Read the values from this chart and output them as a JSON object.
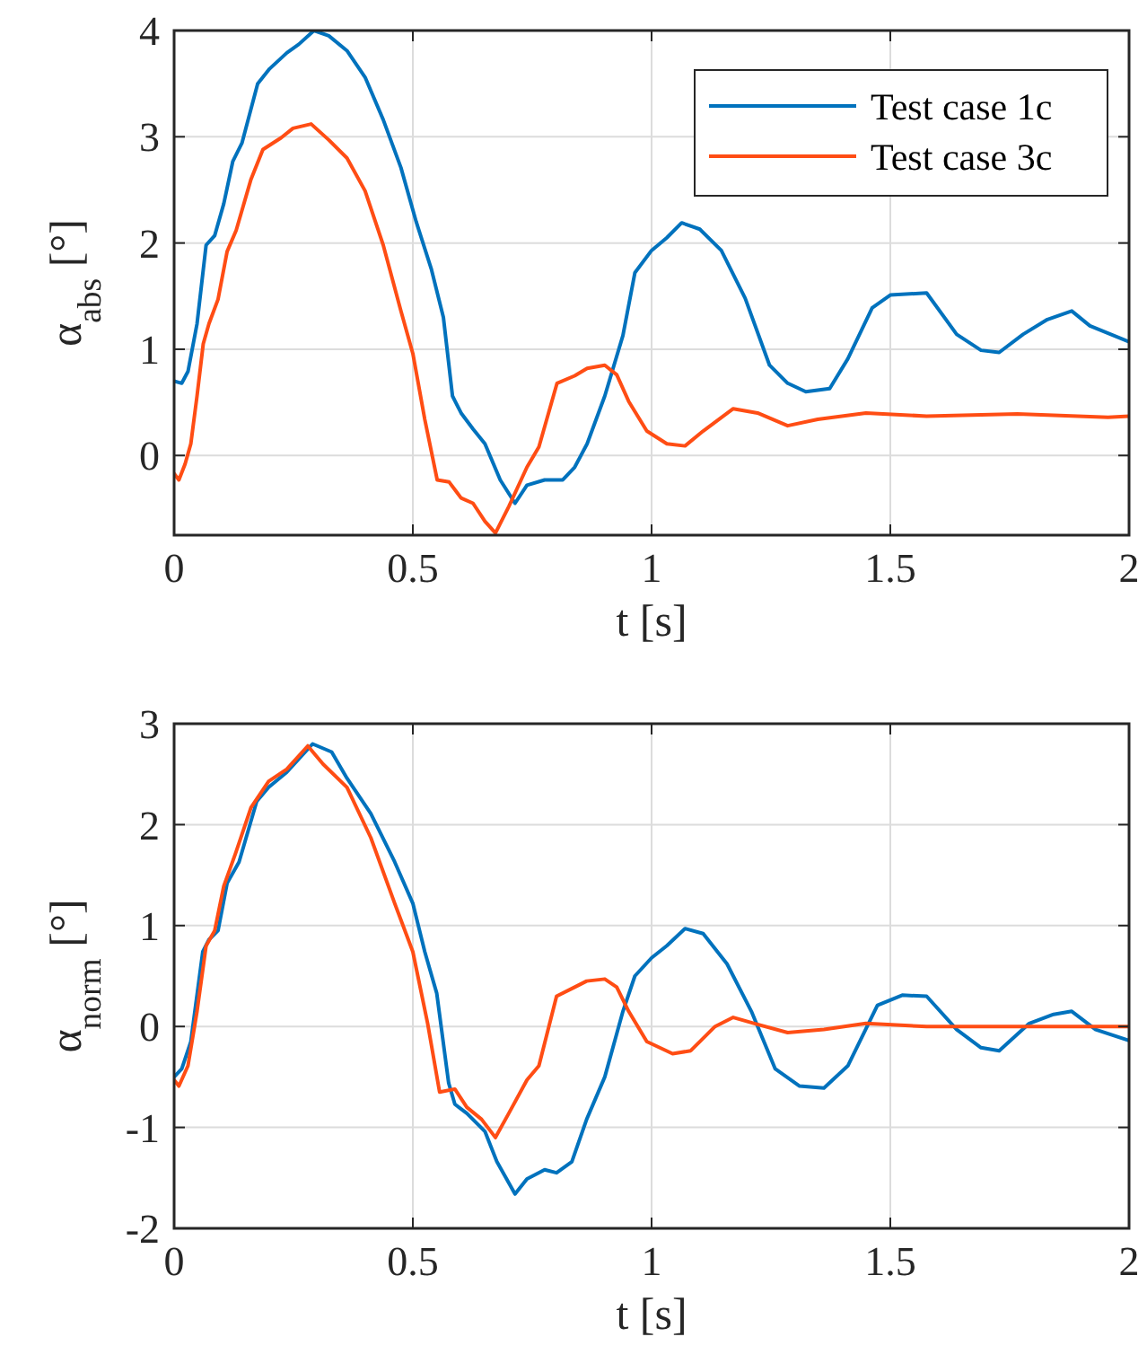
{
  "chart_data": [
    {
      "type": "line",
      "xlabel": "t [s]",
      "ylabel": "α$_{abs}$ [°]",
      "xlim": [
        0,
        2
      ],
      "xticks": [
        0,
        0.5,
        1,
        1.5,
        2
      ],
      "ylim": [
        -0.75,
        4
      ],
      "yticks": [
        0,
        1,
        2,
        3,
        4
      ],
      "grid": true,
      "legend": "top right",
      "line_style": "solid",
      "marker": "none",
      "series": [
        {
          "name": "Test case 1c",
          "color": "#0072bd",
          "x": [
            0,
            0.016,
            0.029,
            0.048,
            0.067,
            0.085,
            0.104,
            0.123,
            0.142,
            0.175,
            0.2,
            0.236,
            0.261,
            0.293,
            0.324,
            0.362,
            0.4,
            0.438,
            0.475,
            0.507,
            0.539,
            0.564,
            0.583,
            0.601,
            0.626,
            0.651,
            0.683,
            0.714,
            0.739,
            0.776,
            0.814,
            0.839,
            0.865,
            0.902,
            0.94,
            0.965,
            1.0,
            1.032,
            1.063,
            1.101,
            1.146,
            1.196,
            1.247,
            1.285,
            1.323,
            1.373,
            1.411,
            1.462,
            1.5,
            1.576,
            1.639,
            1.69,
            1.728,
            1.778,
            1.829,
            1.88,
            1.918,
            2.0
          ],
          "values": [
            0.7,
            0.68,
            0.79,
            1.24,
            1.98,
            2.07,
            2.37,
            2.77,
            2.94,
            3.5,
            3.64,
            3.79,
            3.87,
            4.0,
            3.95,
            3.81,
            3.56,
            3.16,
            2.71,
            2.2,
            1.75,
            1.3,
            0.56,
            0.4,
            0.25,
            0.11,
            -0.23,
            -0.45,
            -0.28,
            -0.23,
            -0.23,
            -0.11,
            0.11,
            0.56,
            1.13,
            1.72,
            1.93,
            2.05,
            2.19,
            2.13,
            1.93,
            1.48,
            0.85,
            0.68,
            0.6,
            0.63,
            0.91,
            1.39,
            1.51,
            1.53,
            1.14,
            0.99,
            0.97,
            1.14,
            1.28,
            1.36,
            1.22,
            1.07
          ]
        },
        {
          "name": "Test case 3c",
          "color": "#ff4d14",
          "x": [
            0,
            0.01,
            0.023,
            0.035,
            0.048,
            0.061,
            0.073,
            0.092,
            0.111,
            0.13,
            0.161,
            0.186,
            0.224,
            0.249,
            0.287,
            0.324,
            0.362,
            0.4,
            0.438,
            0.475,
            0.5,
            0.525,
            0.551,
            0.576,
            0.601,
            0.626,
            0.651,
            0.673,
            0.701,
            0.739,
            0.764,
            0.802,
            0.839,
            0.865,
            0.902,
            0.927,
            0.952,
            0.99,
            1.032,
            1.07,
            1.108,
            1.171,
            1.222,
            1.285,
            1.348,
            1.449,
            1.576,
            1.766,
            1.956,
            2.0
          ],
          "values": [
            -0.17,
            -0.23,
            -0.08,
            0.11,
            0.56,
            1.05,
            1.24,
            1.47,
            1.92,
            2.12,
            2.6,
            2.88,
            2.99,
            3.08,
            3.12,
            2.97,
            2.8,
            2.49,
            1.98,
            1.36,
            0.96,
            0.34,
            -0.23,
            -0.25,
            -0.4,
            -0.45,
            -0.62,
            -0.73,
            -0.48,
            -0.11,
            0.08,
            0.68,
            0.75,
            0.82,
            0.85,
            0.76,
            0.51,
            0.23,
            0.11,
            0.09,
            0.23,
            0.44,
            0.4,
            0.28,
            0.34,
            0.4,
            0.37,
            0.39,
            0.36,
            0.37
          ]
        }
      ]
    },
    {
      "type": "line",
      "xlabel": "t [s]",
      "ylabel": "α$_{norm}$ [°]",
      "xlim": [
        0,
        2
      ],
      "xticks": [
        0,
        0.5,
        1,
        1.5,
        2
      ],
      "ylim": [
        -2,
        3
      ],
      "yticks": [
        -2,
        -1,
        0,
        1,
        2,
        3
      ],
      "grid": true,
      "line_style": "solid",
      "marker": "none",
      "series": [
        {
          "color": "#0072bd",
          "x": [
            0,
            0.016,
            0.035,
            0.06,
            0.073,
            0.092,
            0.111,
            0.136,
            0.173,
            0.198,
            0.236,
            0.29,
            0.33,
            0.362,
            0.412,
            0.462,
            0.5,
            0.525,
            0.55,
            0.575,
            0.588,
            0.613,
            0.651,
            0.676,
            0.714,
            0.739,
            0.776,
            0.801,
            0.833,
            0.864,
            0.902,
            0.94,
            0.965,
            1.0,
            1.032,
            1.07,
            1.108,
            1.158,
            1.209,
            1.259,
            1.31,
            1.361,
            1.411,
            1.473,
            1.525,
            1.576,
            1.639,
            1.69,
            1.728,
            1.791,
            1.842,
            1.88,
            1.93,
            2.0
          ],
          "values": [
            -0.5,
            -0.42,
            -0.15,
            0.74,
            0.86,
            0.95,
            1.42,
            1.63,
            2.23,
            2.37,
            2.52,
            2.8,
            2.72,
            2.46,
            2.11,
            1.63,
            1.22,
            0.74,
            0.33,
            -0.56,
            -0.77,
            -0.86,
            -1.04,
            -1.34,
            -1.66,
            -1.51,
            -1.42,
            -1.45,
            -1.34,
            -0.92,
            -0.5,
            0.15,
            0.5,
            0.68,
            0.8,
            0.97,
            0.92,
            0.62,
            0.15,
            -0.42,
            -0.59,
            -0.61,
            -0.39,
            0.21,
            0.31,
            0.3,
            -0.03,
            -0.21,
            -0.24,
            0.03,
            0.12,
            0.15,
            -0.03,
            -0.14
          ]
        },
        {
          "color": "#ff4d14",
          "x": [
            0,
            0.01,
            0.029,
            0.048,
            0.067,
            0.085,
            0.104,
            0.129,
            0.161,
            0.198,
            0.236,
            0.28,
            0.312,
            0.362,
            0.412,
            0.462,
            0.5,
            0.531,
            0.556,
            0.588,
            0.613,
            0.644,
            0.673,
            0.701,
            0.739,
            0.764,
            0.801,
            0.839,
            0.864,
            0.902,
            0.927,
            0.952,
            0.99,
            1.044,
            1.082,
            1.133,
            1.171,
            1.222,
            1.285,
            1.361,
            1.449,
            1.576,
            1.766,
            1.968,
            2.0
          ],
          "values": [
            -0.53,
            -0.59,
            -0.39,
            0.15,
            0.8,
            0.95,
            1.39,
            1.72,
            2.17,
            2.43,
            2.55,
            2.78,
            2.6,
            2.37,
            1.87,
            1.22,
            0.74,
            0.03,
            -0.65,
            -0.62,
            -0.8,
            -0.92,
            -1.1,
            -0.86,
            -0.53,
            -0.39,
            0.3,
            0.39,
            0.45,
            0.47,
            0.39,
            0.15,
            -0.15,
            -0.27,
            -0.24,
            0,
            0.09,
            0.02,
            -0.06,
            -0.03,
            0.03,
            0,
            0,
            0,
            0
          ]
        }
      ]
    }
  ]
}
